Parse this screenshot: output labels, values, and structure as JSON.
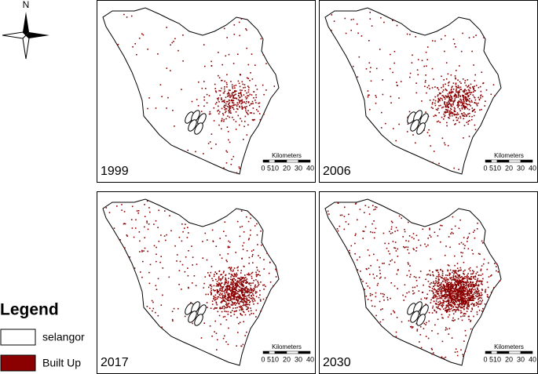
{
  "compass": {
    "label": "N"
  },
  "panels": [
    {
      "year": "1999"
    },
    {
      "year": "2006"
    },
    {
      "year": "2017"
    },
    {
      "year": "2030"
    }
  ],
  "scale_bar": {
    "unit": "Kilometers",
    "ticks": [
      0,
      5,
      10,
      20,
      30,
      40
    ]
  },
  "legend": {
    "title": "Legend",
    "items": [
      {
        "label": "selangor",
        "color": "#ffffff"
      },
      {
        "label": "Built Up",
        "color": "#8b0000"
      }
    ]
  }
}
